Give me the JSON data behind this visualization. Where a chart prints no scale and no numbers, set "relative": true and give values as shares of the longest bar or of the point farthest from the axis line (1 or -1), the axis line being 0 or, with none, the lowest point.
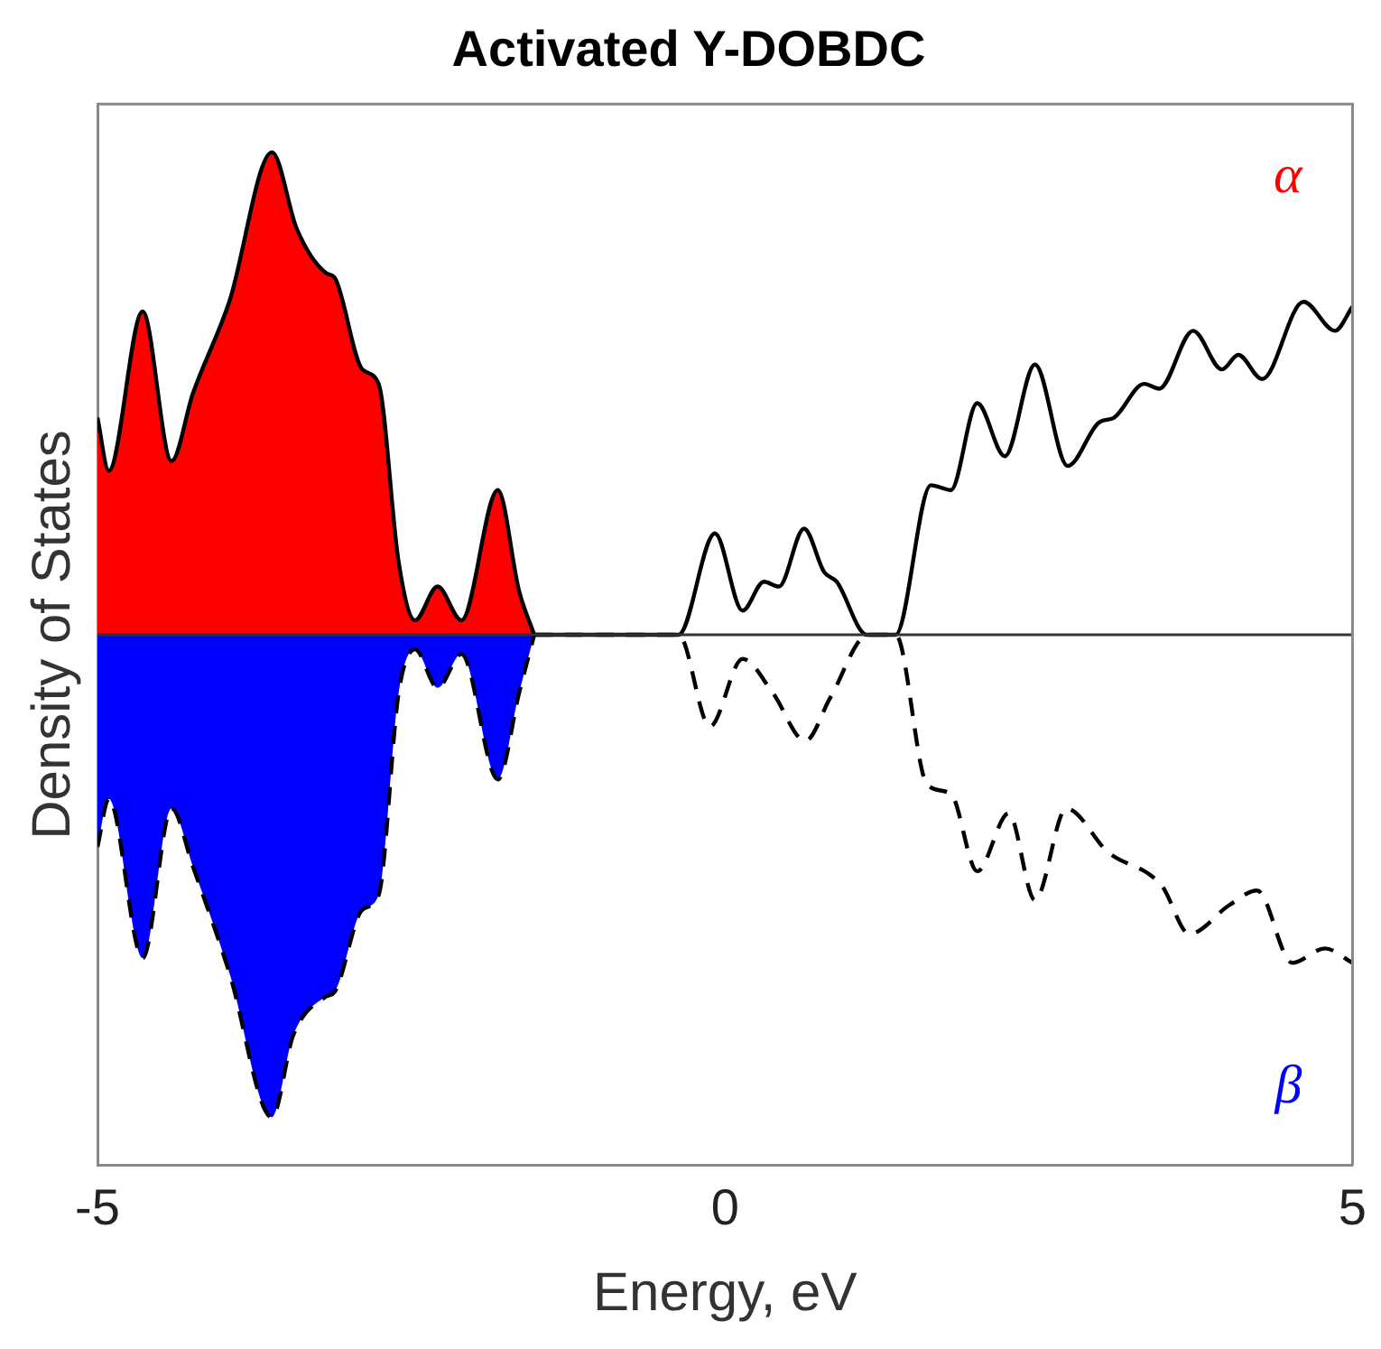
{
  "chart_data": {
    "type": "line",
    "title": "Activated Y-DOBDC",
    "xlabel": "Energy, eV",
    "ylabel": "Density of States",
    "relative": true,
    "xlim": [
      -5,
      5
    ],
    "xticks": [
      -5,
      0,
      5
    ],
    "tick_labels": "x",
    "marker": "none",
    "legend": false,
    "series": [
      {
        "name": "α",
        "type": "area",
        "color": "#ff0000",
        "line_style": "solid",
        "x": [
          -5,
          -4.91,
          -4.64,
          -4.41,
          -4.24,
          -3.95,
          -3.61,
          -3.41,
          -3.18,
          -3.11,
          -2.89,
          -2.76,
          -2.6,
          -2.47,
          -2.29,
          -2.1,
          -1.81,
          -1.64,
          -1.52
        ],
        "values": [
          0.45,
          0.34,
          0.67,
          0.36,
          0.5,
          0.69,
          1.0,
          0.84,
          0.75,
          0.74,
          0.55,
          0.52,
          0.15,
          0.03,
          0.1,
          0.03,
          0.3,
          0.09,
          0
        ]
      },
      {
        "color": "#000000",
        "line_style": "solid",
        "x": [
          -1.52,
          -0.37,
          -0.08,
          0.14,
          0.31,
          0.43,
          0.63,
          0.79,
          0.89,
          1.13,
          1.36,
          1.64,
          1.8,
          2.01,
          2.23,
          2.47,
          2.73,
          2.98,
          3.1,
          3.34,
          3.46,
          3.73,
          3.96,
          4.09,
          4.28,
          4.61,
          4.86,
          5
        ],
        "values": [
          0,
          0,
          0.21,
          0.05,
          0.11,
          0.1,
          0.22,
          0.13,
          0.11,
          0,
          0,
          0.31,
          0.3,
          0.48,
          0.37,
          0.56,
          0.35,
          0.44,
          0.45,
          0.52,
          0.51,
          0.63,
          0.55,
          0.58,
          0.53,
          0.69,
          0.63,
          0.68
        ]
      },
      {
        "name": "β",
        "type": "area",
        "color": "#0000ff",
        "line_style": "dashed",
        "x": [
          -5,
          -4.91,
          -4.64,
          -4.41,
          -4.24,
          -3.95,
          -3.61,
          -3.44,
          -3.18,
          -3.11,
          -2.89,
          -2.76,
          -2.6,
          -2.47,
          -2.29,
          -2.1,
          -1.81,
          -1.64,
          -1.52
        ],
        "values": [
          -0.44,
          -0.34,
          -0.67,
          -0.36,
          -0.48,
          -0.7,
          -1.0,
          -0.83,
          -0.75,
          -0.74,
          -0.57,
          -0.54,
          -0.12,
          -0.03,
          -0.11,
          -0.04,
          -0.3,
          -0.12,
          0
        ]
      },
      {
        "color": "#000000",
        "line_style": "dashed",
        "x": [
          -1.52,
          -0.37,
          -0.12,
          0.14,
          0.38,
          0.64,
          0.84,
          1.14,
          1.36,
          1.61,
          1.8,
          2.01,
          2.26,
          2.47,
          2.72,
          3.05,
          3.48,
          3.7,
          4.02,
          4.24,
          4.52,
          4.78,
          5
        ],
        "values": [
          0,
          0,
          -0.19,
          -0.05,
          -0.12,
          -0.22,
          -0.13,
          0,
          0,
          -0.31,
          -0.33,
          -0.49,
          -0.37,
          -0.55,
          -0.36,
          -0.45,
          -0.52,
          -0.62,
          -0.56,
          -0.53,
          -0.68,
          -0.65,
          -0.68
        ]
      }
    ]
  }
}
